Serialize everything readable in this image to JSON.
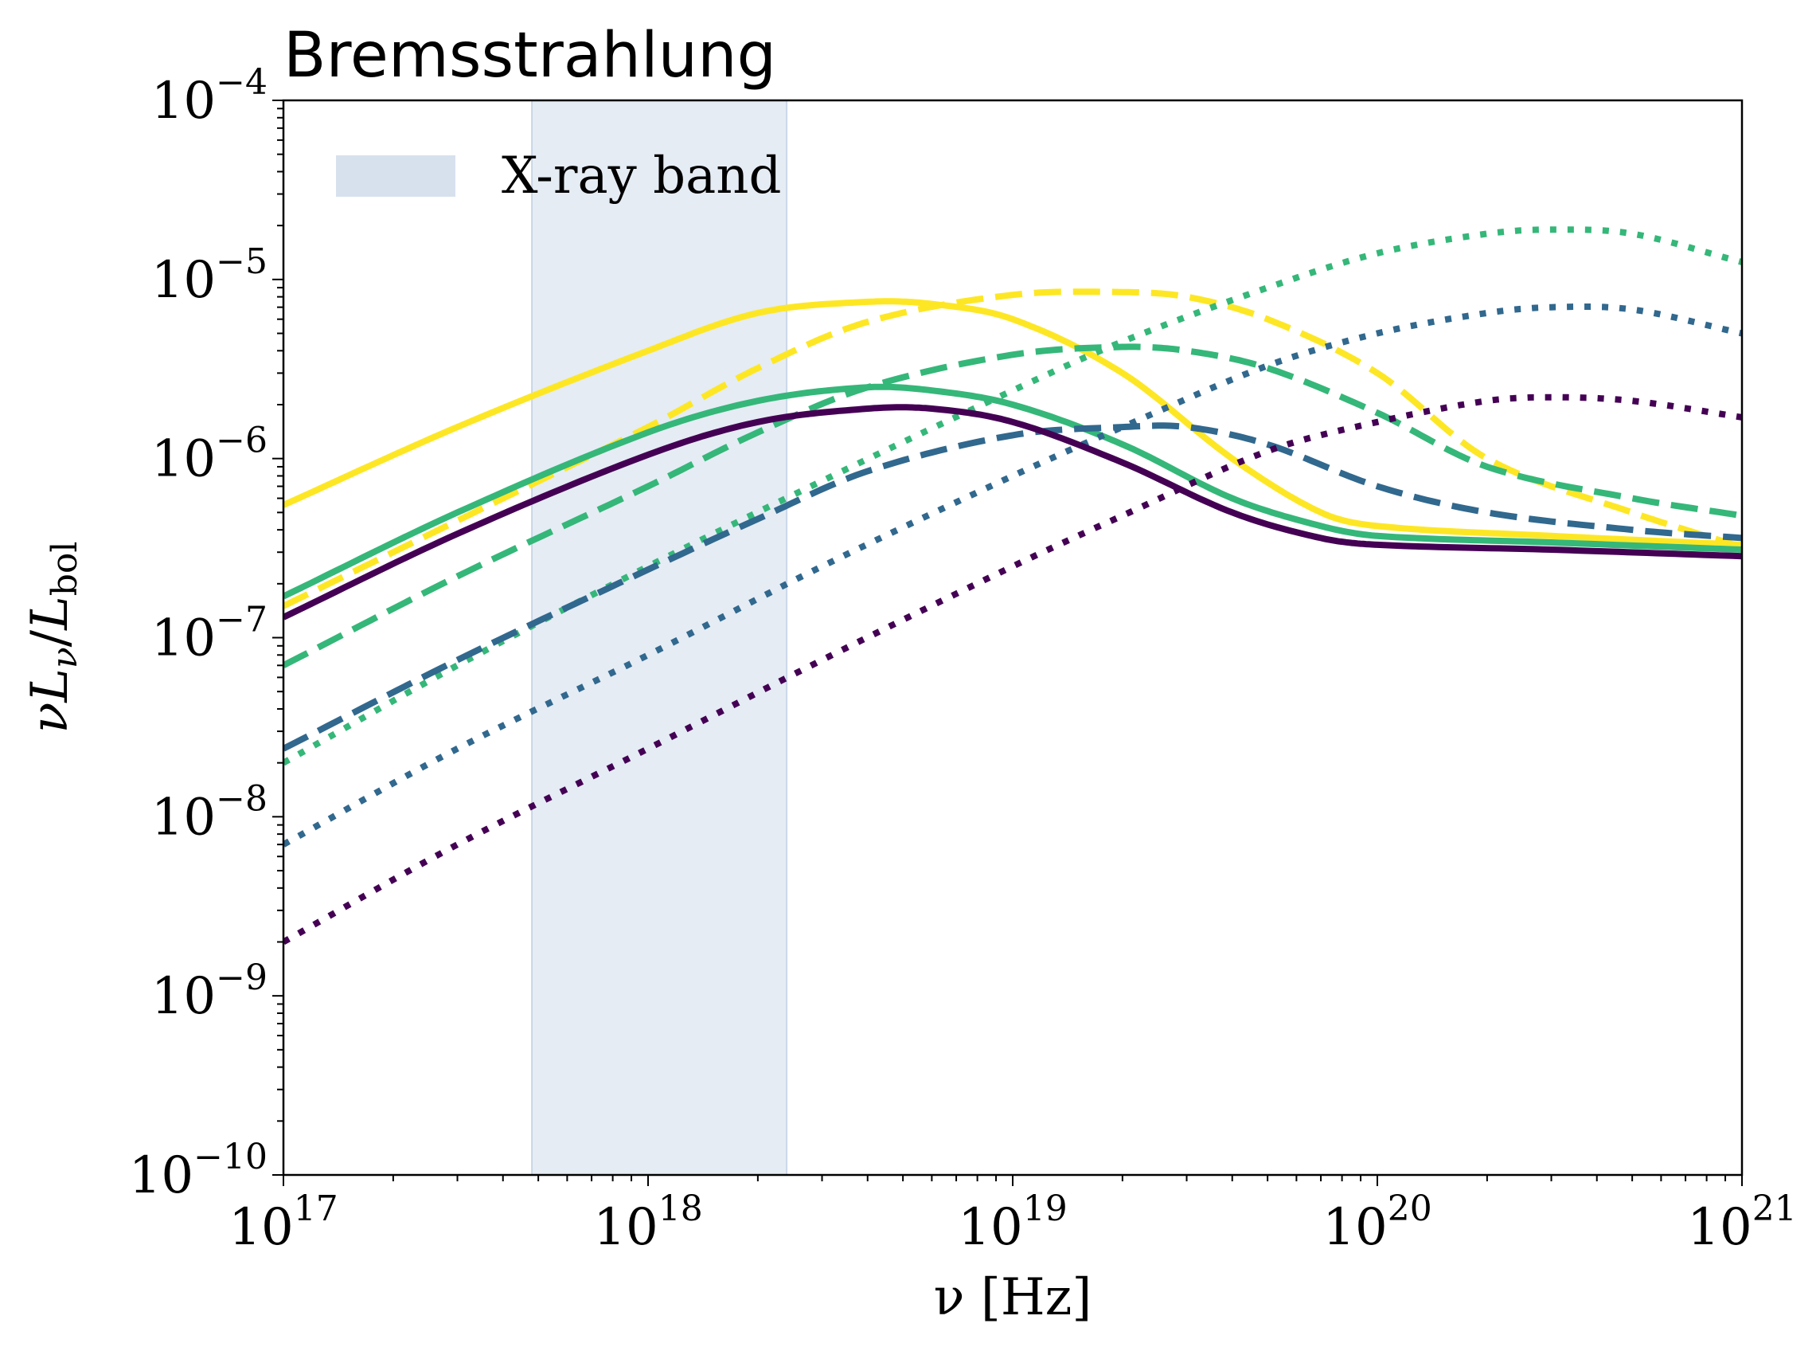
{
  "chart_data": {
    "type": "line",
    "title": "Bremsstrahlung",
    "xlabel": "ν [Hz]",
    "ylabel": "νL_ν/L_bol",
    "xscale": "log",
    "yscale": "log",
    "xlim": [
      1e+17,
      1e+21
    ],
    "ylim": [
      1e-10,
      0.0001
    ],
    "grid": false,
    "legend_position": "top-left",
    "x_ticks": [
      {
        "value": 1e+17,
        "base": "10",
        "exp": "17"
      },
      {
        "value": 1e+18,
        "base": "10",
        "exp": "18"
      },
      {
        "value": 1e+19,
        "base": "10",
        "exp": "19"
      },
      {
        "value": 1e+20,
        "base": "10",
        "exp": "20"
      },
      {
        "value": 1e+21,
        "base": "10",
        "exp": "21"
      }
    ],
    "y_ticks": [
      {
        "value": 1e-10,
        "base": "10",
        "exp": "−10"
      },
      {
        "value": 1e-09,
        "base": "10",
        "exp": "−9"
      },
      {
        "value": 1e-08,
        "base": "10",
        "exp": "−8"
      },
      {
        "value": 1e-07,
        "base": "10",
        "exp": "−7"
      },
      {
        "value": 1e-06,
        "base": "10",
        "exp": "−6"
      },
      {
        "value": 1e-05,
        "base": "10",
        "exp": "−5"
      },
      {
        "value": 0.0001,
        "base": "10",
        "exp": "−4"
      }
    ],
    "band": {
      "label": "X-ray band",
      "x_range": [
        4.8e+17,
        2.4e+18
      ],
      "color": "#b0c4de"
    },
    "series": [
      {
        "color": "#fde725",
        "style": "solid",
        "x": [
          1e+17,
          3e+17,
          1e+18,
          2e+18,
          4e+18,
          6e+18,
          1e+19,
          2e+19,
          4e+19,
          7e+19,
          1e+20,
          3e+20,
          1e+21
        ],
        "y": [
          5.5e-07,
          1.5e-06,
          4e-06,
          6.5e-06,
          7.5e-06,
          7.3e-06,
          6e-06,
          3e-06,
          1e-06,
          5e-07,
          4.2e-07,
          3.7e-07,
          3.3e-07
        ]
      },
      {
        "color": "#fde725",
        "style": "dashed",
        "x": [
          1e+17,
          3e+17,
          1e+18,
          2e+18,
          4e+18,
          1e+19,
          2e+19,
          3e+19,
          5e+19,
          1e+20,
          2e+20,
          5e+20,
          1e+21
        ],
        "y": [
          1.5e-07,
          4.5e-07,
          1.5e-06,
          3.2e-06,
          5.8e-06,
          8.2e-06,
          8.5e-06,
          8e-06,
          6e-06,
          3e-06,
          1e-06,
          5e-07,
          3.2e-07
        ]
      },
      {
        "color": "#35b779",
        "style": "solid",
        "x": [
          1e+17,
          3e+17,
          1e+18,
          2e+18,
          4e+18,
          6e+18,
          1e+19,
          2e+19,
          4e+19,
          7e+19,
          1e+20,
          3e+20,
          1e+21
        ],
        "y": [
          1.7e-07,
          5e-07,
          1.4e-06,
          2.1e-06,
          2.5e-06,
          2.4e-06,
          2e-06,
          1.2e-06,
          6e-07,
          4.2e-07,
          3.7e-07,
          3.4e-07,
          3.1e-07
        ]
      },
      {
        "color": "#35b779",
        "style": "dashed",
        "x": [
          1e+17,
          3e+17,
          1e+18,
          2e+18,
          4e+18,
          1e+19,
          2e+19,
          3e+19,
          5e+19,
          1e+20,
          2e+20,
          5e+20,
          1e+21
        ],
        "y": [
          7e-08,
          2.2e-07,
          7e-07,
          1.4e-06,
          2.5e-06,
          3.8e-06,
          4.2e-06,
          4e-06,
          3.2e-06,
          1.8e-06,
          9e-07,
          6e-07,
          4.8e-07
        ]
      },
      {
        "color": "#35b779",
        "style": "dotted",
        "x": [
          1e+17,
          3e+17,
          1e+18,
          3e+18,
          1e+19,
          2e+19,
          5e+19,
          1e+20,
          2e+20,
          3e+20,
          5e+20,
          1e+21
        ],
        "y": [
          2e-08,
          7e-08,
          2.5e-07,
          7.5e-07,
          2.4e-06,
          4.5e-06,
          9e-06,
          1.4e-05,
          1.8e-05,
          1.9e-05,
          1.8e-05,
          1.25e-05
        ]
      },
      {
        "color": "#31688e",
        "style": "dashed",
        "x": [
          1e+17,
          3e+17,
          1e+18,
          2e+18,
          4e+18,
          1e+19,
          2e+19,
          3e+19,
          5e+19,
          1e+20,
          2e+20,
          5e+20,
          1e+21
        ],
        "y": [
          2.4e-08,
          7.5e-08,
          2.4e-07,
          4.6e-07,
          8.5e-07,
          1.35e-06,
          1.5e-06,
          1.5e-06,
          1.2e-06,
          7e-07,
          5e-07,
          4e-07,
          3.6e-07
        ]
      },
      {
        "color": "#31688e",
        "style": "dotted",
        "x": [
          1e+17,
          3e+17,
          1e+18,
          3e+18,
          1e+19,
          2e+19,
          5e+19,
          1e+20,
          2e+20,
          3e+20,
          5e+20,
          1e+21
        ],
        "y": [
          7e-09,
          2.4e-08,
          8e-08,
          2.5e-07,
          8e-07,
          1.5e-06,
          3.3e-06,
          5e-06,
          6.5e-06,
          7e-06,
          6.8e-06,
          5e-06
        ]
      },
      {
        "color": "#440154",
        "style": "solid",
        "x": [
          1e+17,
          3e+17,
          1e+18,
          2e+18,
          4e+18,
          6e+18,
          1e+19,
          2e+19,
          4e+19,
          7e+19,
          1e+20,
          3e+20,
          1e+21
        ],
        "y": [
          1.3e-07,
          3.8e-07,
          1.05e-06,
          1.6e-06,
          1.9e-06,
          1.9e-06,
          1.6e-06,
          9.5e-07,
          5e-07,
          3.6e-07,
          3.3e-07,
          3.1e-07,
          2.85e-07
        ]
      },
      {
        "color": "#440154",
        "style": "dotted",
        "x": [
          1e+17,
          3e+17,
          1e+18,
          3e+18,
          1e+19,
          2e+19,
          5e+19,
          1e+20,
          2e+20,
          3e+20,
          5e+20,
          1e+21
        ],
        "y": [
          2e-09,
          7e-09,
          2.4e-08,
          7.5e-08,
          2.5e-07,
          4.8e-07,
          1.1e-06,
          1.6e-06,
          2.1e-06,
          2.2e-06,
          2.1e-06,
          1.7e-06
        ]
      }
    ]
  }
}
